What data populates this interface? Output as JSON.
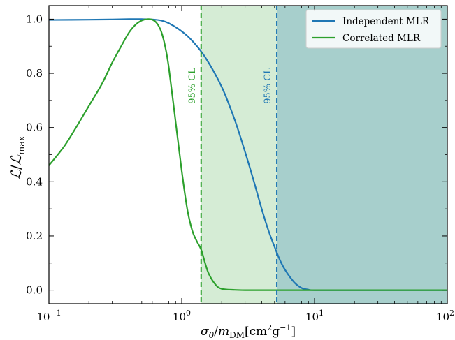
{
  "chart_data": {
    "type": "line",
    "xlabel": "σ0/mDM[cm2g−1]",
    "xlabel_parts": {
      "sigma": "σ",
      "sigma_sub": "0",
      "slash": "/",
      "m": "m",
      "m_sub": "DM",
      "unit_open": "[cm",
      "unit_sup1": "2",
      "unit_mid": "g",
      "unit_sup2": "−1",
      "unit_close": "]"
    },
    "ylabel": "L/Lmax",
    "ylabel_parts": {
      "L": "ℒ",
      "slash": "/",
      "L2": "ℒ",
      "sub": "max"
    },
    "x_scale": "log",
    "xlim": [
      0.1,
      100
    ],
    "ylim": [
      -0.05,
      1.05
    ],
    "x_ticks": [
      {
        "value": 0.1,
        "base": "10",
        "exp": "−1"
      },
      {
        "value": 1,
        "base": "10",
        "exp": "0"
      },
      {
        "value": 10,
        "base": "10",
        "exp": "1"
      },
      {
        "value": 100,
        "base": "10",
        "exp": "2"
      }
    ],
    "y_ticks": [
      {
        "value": 0.0,
        "label": "0.0"
      },
      {
        "value": 0.2,
        "label": "0.2"
      },
      {
        "value": 0.4,
        "label": "0.4"
      },
      {
        "value": 0.6,
        "label": "0.6"
      },
      {
        "value": 0.8,
        "label": "0.8"
      },
      {
        "value": 1.0,
        "label": "1.0"
      }
    ],
    "grid": false,
    "legend_position": "top-right",
    "series": [
      {
        "name": "Independent MLR",
        "color": "#1f77b4",
        "x": [
          0.1,
          0.2,
          0.3,
          0.4,
          0.5,
          0.6,
          0.7,
          0.8,
          1.0,
          1.2,
          1.5,
          2.0,
          2.5,
          3.0,
          3.5,
          4.0,
          4.5,
          5.0,
          5.5,
          6.0,
          7.0,
          8.0,
          9.0,
          10,
          20,
          50,
          100
        ],
        "values": [
          0.997,
          0.998,
          0.999,
          1.0,
          1.0,
          0.999,
          0.995,
          0.985,
          0.955,
          0.92,
          0.86,
          0.75,
          0.63,
          0.51,
          0.4,
          0.3,
          0.22,
          0.16,
          0.11,
          0.075,
          0.03,
          0.008,
          0.002,
          0.0,
          0.0,
          0.0,
          0.0
        ]
      },
      {
        "name": "Correlated MLR",
        "color": "#2ca02c",
        "x": [
          0.1,
          0.13,
          0.16,
          0.2,
          0.25,
          0.3,
          0.35,
          0.4,
          0.45,
          0.5,
          0.55,
          0.6,
          0.65,
          0.7,
          0.75,
          0.8,
          0.9,
          1.0,
          1.1,
          1.2,
          1.3,
          1.4,
          1.5,
          1.6,
          1.8,
          2.0,
          2.5,
          3.0,
          5.0,
          10,
          100
        ],
        "values": [
          0.46,
          0.53,
          0.6,
          0.68,
          0.76,
          0.84,
          0.9,
          0.95,
          0.98,
          0.995,
          1.0,
          0.998,
          0.985,
          0.955,
          0.9,
          0.82,
          0.62,
          0.44,
          0.3,
          0.22,
          0.18,
          0.15,
          0.1,
          0.06,
          0.02,
          0.005,
          0.001,
          0.0,
          0.0,
          0.0,
          0.0
        ]
      }
    ],
    "limits": [
      {
        "x": 1.4,
        "color": "#2ca02c",
        "label": "95% CL",
        "fill": "#2ca02c"
      },
      {
        "x": 5.2,
        "color": "#1f77b4",
        "label": "95% CL",
        "fill": "#1f77b4"
      }
    ]
  }
}
